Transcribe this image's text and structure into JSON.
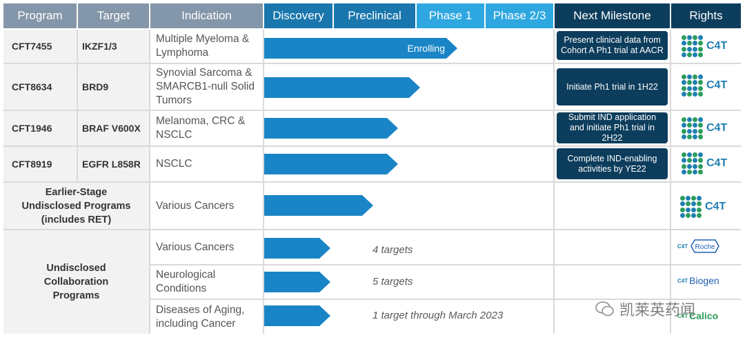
{
  "headers": {
    "program": "Program",
    "target": "Target",
    "indication": "Indication",
    "discovery": "Discovery",
    "preclinical": "Preclinical",
    "phase1": "Phase 1",
    "phase23": "Phase 2/3",
    "milestone": "Next Milestone",
    "rights": "Rights"
  },
  "rows": [
    {
      "program": "CFT7455",
      "target": "IKZF1/3",
      "indication": "Multiple Myeloma & Lymphoma",
      "arrow_label": "Enrolling",
      "milestone": "Present clinical data from Cohort A Ph1 trial at AACR",
      "rights": "C4T"
    },
    {
      "program": "CFT8634",
      "target": "BRD9",
      "indication": "Synovial Sarcoma & SMARCB1-null Solid Tumors",
      "milestone": "Initiate Ph1 trial in 1H22",
      "rights": "C4T"
    },
    {
      "program": "CFT1946",
      "target": "BRAF V600X",
      "indication": "Melanoma, CRC & NSCLC",
      "milestone": "Submit IND application and initiate Ph1 trial in 2H22",
      "rights": "C4T"
    },
    {
      "program": "CFT8919",
      "target": "EGFR L858R",
      "indication": "NSCLC",
      "milestone": "Complete IND-enabling activities by YE22",
      "rights": "C4T"
    },
    {
      "program": "Earlier-Stage Undisclosed Programs (includes RET)",
      "indication": "Various Cancers",
      "rights": "C4T"
    }
  ],
  "collab": {
    "program": "Undisclosed Collaboration Programs",
    "rows": [
      {
        "indication": "Various Cancers",
        "note": "4 targets",
        "partner": "Roche"
      },
      {
        "indication": "Neurological Conditions",
        "note": "5 targets",
        "partner": "Biogen"
      },
      {
        "indication": "Diseases of Aging, including Cancer",
        "note": "1 target through March 2023",
        "partner": "Calico"
      }
    ]
  },
  "progress_phase_fraction": [
    0.7,
    0.53,
    0.45,
    0.45,
    0.37,
    0.23,
    0.23,
    0.23
  ],
  "watermark": "凯莱英药闻",
  "colors": {
    "header_gray": "#8496a9",
    "header_blue": "#1a77ad",
    "header_light": "#2ea7e0",
    "header_navy": "#0d3d5c",
    "arrow": "#1a85c6"
  }
}
